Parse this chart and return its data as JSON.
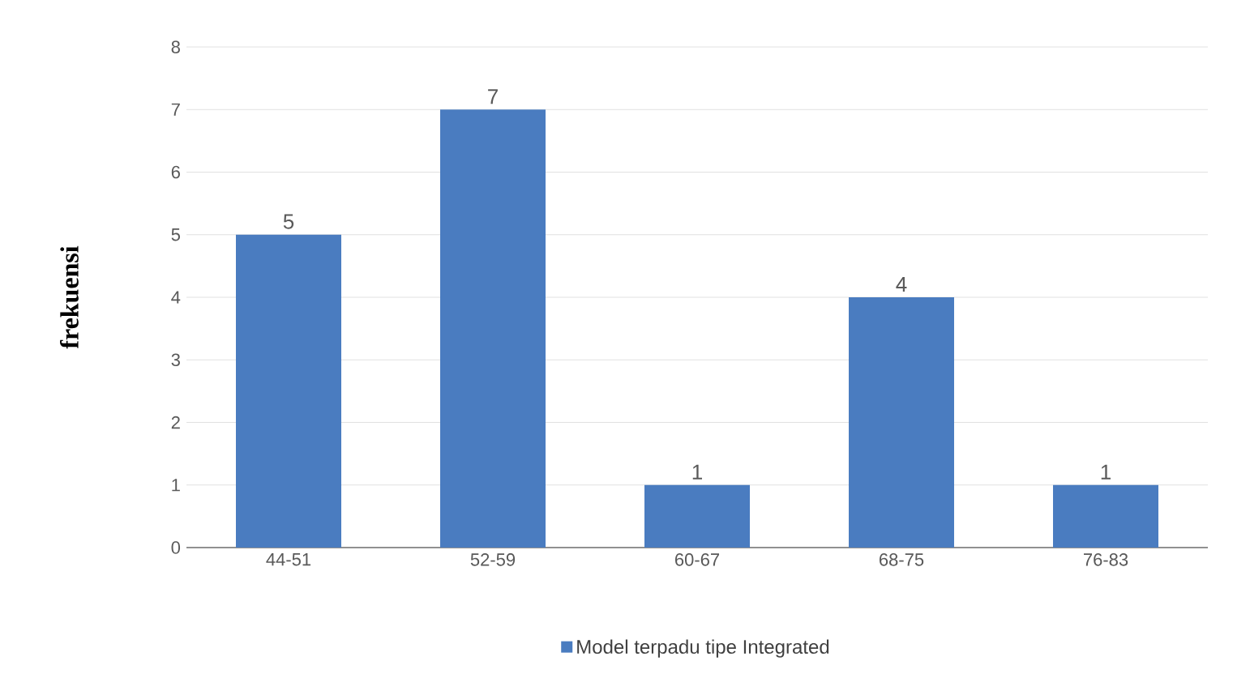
{
  "chart_data": {
    "type": "bar",
    "ylabel": "frekuensi",
    "categories": [
      "44-51",
      "52-59",
      "60-67",
      "68-75",
      "76-83"
    ],
    "series": [
      {
        "name": "Model terpadu tipe Integrated",
        "color": "#4a7cc0",
        "values": [
          5,
          7,
          1,
          4,
          1
        ]
      }
    ],
    "ylim": [
      0,
      8
    ],
    "yticks": [
      0,
      1,
      2,
      3,
      4,
      5,
      6,
      7,
      8
    ],
    "grid": "y",
    "legend": "bottom",
    "data_labels": true
  }
}
